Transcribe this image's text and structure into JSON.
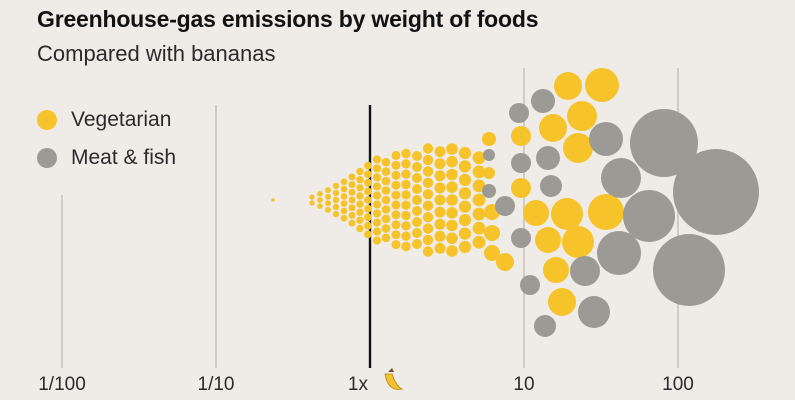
{
  "chart_data": {
    "type": "scatter",
    "title": "Greenhouse-gas emissions by weight of foods",
    "subtitle": "Compared with bananas",
    "x_scale": "log",
    "xlim": [
      0.01,
      300
    ],
    "ticks": [
      {
        "value": 0.01,
        "label": "1/100"
      },
      {
        "value": 0.1,
        "label": "1/10"
      },
      {
        "value": 1,
        "label": "1x"
      },
      {
        "value": 10,
        "label": "10"
      },
      {
        "value": 100,
        "label": "100"
      }
    ],
    "reference_value": 1,
    "reference_icon": "banana-icon",
    "grid": true,
    "legend_position": "top-left",
    "series": [
      {
        "name": "Vegetarian",
        "color": "#f6c32b",
        "points": []
      },
      {
        "name": "Meat & fish",
        "color": "#9b9a94",
        "points": []
      }
    ]
  }
}
